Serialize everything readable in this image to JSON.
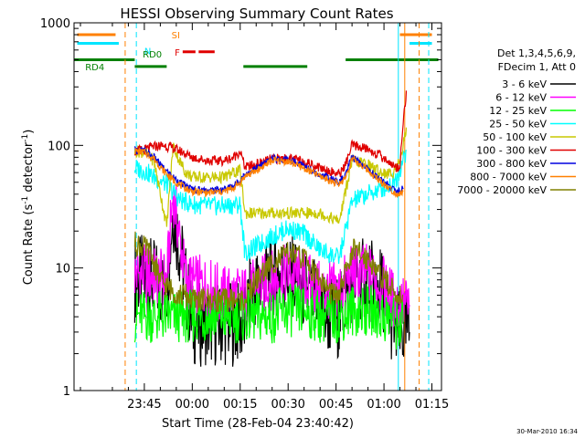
{
  "chart_data": {
    "type": "line",
    "title": "HESSI Observing Summary Count Rates",
    "xlabel": "Start Time (28-Feb-04 23:40:42)",
    "ylabel_main": "Count Rate (s",
    "ylabel_sup1": "-1",
    "ylabel_mid": " detector",
    "ylabel_sup2": "-1",
    "ylabel_end": ")",
    "y_scale": "log",
    "ylim": [
      1,
      1000
    ],
    "xlim_minutes": [
      -17,
      98
    ],
    "x_tick_values": [
      5,
      20,
      35,
      50,
      65,
      80,
      95
    ],
    "x_ticks": [
      "23:45",
      "00:00",
      "00:15",
      "00:30",
      "00:45",
      "01:00",
      "01:15"
    ],
    "y_ticks": [
      "1",
      "10",
      "100",
      "1000"
    ],
    "legend_header": [
      "Det 1,3,4,5,6,9,",
      "FDecim 1, Att 0"
    ],
    "footer_date": "30-Mar-2010 16:34",
    "colors": {
      "axes": "#000000",
      "sunlight": "#ff8000",
      "saa": "#00e5ff",
      "flare": "#e00000",
      "decim": "#008000"
    },
    "flag_labels": {
      "saa": "N",
      "sunlight": "SI",
      "decim": "RD4",
      "decim2": "RD0",
      "flare": "F"
    },
    "flag_intervals": {
      "sunlight_minutes": [
        [
          -16,
          -4
        ],
        [
          85,
          95
        ]
      ],
      "saa_minutes": [
        [
          -16,
          -3
        ],
        [
          88,
          95
        ]
      ],
      "flare_minutes": [
        [
          17,
          21
        ],
        [
          22,
          27
        ]
      ],
      "decim_minutes": [
        [
          -17,
          2
        ],
        [
          2,
          12
        ],
        [
          36,
          56
        ],
        [
          68,
          97
        ]
      ]
    },
    "markers_minutes": {
      "orange_dashed": [
        -1.0,
        91.0
      ],
      "cyan_dashed": [
        2.5,
        94.0
      ],
      "cyan_solid": [
        84.5
      ],
      "orange_solid": [
        86.5
      ]
    },
    "series": [
      {
        "name": "3 - 6 keV",
        "color": "#000000",
        "x": [
          2,
          4,
          6,
          7,
          9,
          10,
          12,
          14,
          16,
          20,
          25,
          30,
          35,
          36.5,
          38,
          40,
          43,
          47,
          52,
          56,
          60,
          63,
          65,
          66,
          70,
          75,
          80,
          82,
          84,
          86,
          88
        ],
        "y": [
          8,
          8.5,
          7,
          8,
          7.5,
          7,
          7,
          30,
          15,
          3.5,
          3.5,
          3.5,
          3.5,
          3.5,
          6,
          7,
          8.5,
          9,
          8.5,
          6,
          5,
          4,
          4,
          4,
          8,
          8,
          6.5,
          4,
          3,
          3,
          3
        ]
      },
      {
        "name": "6 - 12 keV",
        "color": "#ff00ff",
        "x": [
          2,
          4,
          8,
          12,
          14,
          16,
          18,
          20,
          25,
          30,
          35,
          36.5,
          40,
          45,
          50,
          55,
          60,
          66,
          70,
          75,
          80,
          82,
          84,
          86,
          88
        ],
        "y": [
          9,
          9,
          8.5,
          8,
          40,
          18,
          8,
          7.5,
          7,
          6,
          6,
          6,
          7,
          8,
          9,
          8,
          6.5,
          6.5,
          9,
          9,
          7,
          6,
          5,
          5,
          5
        ]
      },
      {
        "name": "12 - 25 keV",
        "color": "#00ff00",
        "x": [
          2,
          5,
          10,
          15,
          20,
          25,
          30,
          35,
          36.5,
          40,
          45,
          50,
          55,
          60,
          66,
          70,
          75,
          80,
          82,
          84,
          86
        ],
        "y": [
          4,
          4,
          4,
          4,
          4,
          4,
          4,
          4,
          4,
          4,
          4,
          4.5,
          4.5,
          4,
          4,
          4.5,
          4.5,
          4,
          4,
          3.5,
          3.5
        ]
      },
      {
        "name": "25 - 50 keV",
        "color": "#00ffff",
        "x": [
          2,
          5,
          8,
          12,
          14,
          16,
          20,
          25,
          30,
          35,
          36.5,
          40,
          45,
          50,
          55,
          60,
          66,
          70,
          75,
          80,
          82,
          84,
          86,
          87
        ],
        "y": [
          65,
          62,
          55,
          48,
          42,
          36,
          33,
          32,
          32,
          33,
          13,
          15,
          18,
          21,
          19,
          14,
          12,
          35,
          40,
          45,
          48,
          55,
          75,
          90
        ]
      },
      {
        "name": "50 - 100 keV",
        "color": "#c8c800",
        "x": [
          2,
          5,
          8,
          12,
          14,
          16,
          18,
          20,
          25,
          30,
          33,
          35,
          36.5,
          40,
          45,
          50,
          55,
          60,
          66,
          70,
          75,
          78,
          82,
          84,
          86,
          87
        ],
        "y": [
          90,
          88,
          75,
          22,
          100,
          75,
          60,
          55,
          55,
          55,
          60,
          62,
          28,
          28,
          28,
          28,
          28,
          28,
          24,
          75,
          70,
          62,
          58,
          65,
          100,
          140
        ]
      },
      {
        "name": "100 - 300 keV",
        "color": "#e00000",
        "x": [
          2,
          5,
          8,
          11,
          14,
          17,
          20,
          25,
          30,
          33,
          35,
          36.5,
          40,
          45,
          50,
          55,
          60,
          66,
          68,
          70,
          74,
          78,
          82,
          84,
          85,
          86,
          87
        ],
        "y": [
          90,
          92,
          98,
          100,
          95,
          88,
          80,
          75,
          75,
          80,
          90,
          66,
          70,
          78,
          78,
          74,
          66,
          58,
          70,
          100,
          95,
          85,
          72,
          65,
          70,
          150,
          280
        ]
      },
      {
        "name": "300 - 800 keV",
        "color": "#0000e0",
        "x": [
          2,
          5,
          8,
          11,
          14,
          17,
          20,
          25,
          30,
          33,
          35,
          36.5,
          40,
          45,
          50,
          55,
          60,
          66,
          68,
          70,
          74,
          78,
          82,
          84,
          86
        ],
        "y": [
          92,
          90,
          80,
          65,
          55,
          48,
          44,
          43,
          44,
          47,
          52,
          58,
          65,
          78,
          77,
          68,
          58,
          50,
          58,
          80,
          68,
          55,
          46,
          42,
          44
        ]
      },
      {
        "name": "800 - 7000 keV",
        "color": "#ff8000",
        "x": [
          2,
          5,
          8,
          11,
          14,
          17,
          20,
          25,
          30,
          33,
          35,
          36.5,
          40,
          45,
          50,
          55,
          60,
          66,
          68,
          70,
          74,
          78,
          82,
          84,
          86
        ],
        "y": [
          90,
          88,
          78,
          62,
          52,
          46,
          42,
          41,
          42,
          45,
          50,
          56,
          62,
          75,
          74,
          65,
          56,
          48,
          55,
          78,
          66,
          53,
          44,
          40,
          42
        ]
      },
      {
        "name": "7000 - 20000 keV",
        "color": "#808000",
        "x": [
          2,
          4,
          6,
          8,
          10,
          12,
          14,
          16,
          18,
          20,
          25,
          30,
          35,
          36.5,
          40,
          45,
          50,
          55,
          60,
          64,
          66,
          68,
          70,
          75,
          80,
          82,
          84,
          86
        ],
        "y": [
          16,
          15,
          14,
          11,
          8,
          7,
          6.5,
          6,
          6,
          5.5,
          5.5,
          5.5,
          5.5,
          5.5,
          8,
          11,
          13,
          12,
          8,
          6,
          6,
          9,
          14,
          12,
          8,
          7,
          6,
          6
        ]
      }
    ]
  }
}
